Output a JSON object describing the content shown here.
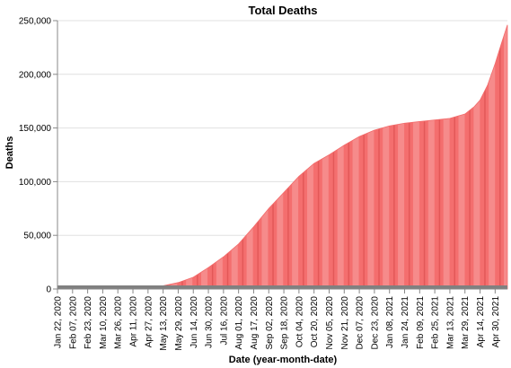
{
  "chart_data": {
    "type": "area",
    "title": "Total Deaths",
    "xlabel": "Date (year-month-date)",
    "ylabel": "Deaths",
    "ylim": [
      0,
      250000
    ],
    "y_ticks": [
      0,
      50000,
      100000,
      150000,
      200000,
      250000
    ],
    "y_tick_labels": [
      "0",
      "50,000",
      "100,000",
      "150,000",
      "200,000",
      "250,000"
    ],
    "x_range": [
      "2020-01-22",
      "2021-05-13"
    ],
    "x_tick_labels": [
      "Jan 22, 2020",
      "Feb 07, 2020",
      "Feb 23, 2020",
      "Mar 10, 2020",
      "Mar 26, 2020",
      "Apr 11, 2020",
      "Apr 27, 2020",
      "May 13, 2020",
      "May 29, 2020",
      "Jun 14, 2020",
      "Jun 30, 2020",
      "Jul 16, 2020",
      "Aug 01, 2020",
      "Aug 17, 2020",
      "Sep 02, 2020",
      "Sep 18, 2020",
      "Oct 04, 2020",
      "Oct 20, 2020",
      "Nov 05, 2020",
      "Nov 21, 2020",
      "Dec 07, 2020",
      "Dec 23, 2020",
      "Jan 08, 2021",
      "Jan 24, 2021",
      "Feb 09, 2021",
      "Feb 25, 2021",
      "Mar 13, 2021",
      "Mar 29, 2021",
      "Apr 14, 2021",
      "Apr 30, 2021"
    ],
    "grid": true,
    "color": "#f26b6b",
    "series": [
      {
        "x": [
          "2020-01-22",
          "2020-02-23",
          "2020-03-26",
          "2020-04-27",
          "2020-05-13",
          "2020-05-29",
          "2020-06-14",
          "2020-06-30",
          "2020-07-16",
          "2020-08-01",
          "2020-08-17",
          "2020-09-02",
          "2020-09-18",
          "2020-10-04",
          "2020-10-20",
          "2020-11-05",
          "2020-11-21",
          "2020-12-07",
          "2020-12-23",
          "2021-01-08",
          "2021-01-24",
          "2021-02-09",
          "2021-02-25",
          "2021-03-13",
          "2021-03-29",
          "2021-04-08",
          "2021-04-14",
          "2021-04-22",
          "2021-04-30",
          "2021-05-06",
          "2021-05-13"
        ],
        "y": [
          0,
          0,
          200,
          1500,
          3000,
          6000,
          11000,
          20000,
          30000,
          42000,
          58000,
          75000,
          90000,
          105000,
          117000,
          125000,
          134000,
          142000,
          148000,
          152000,
          154500,
          156000,
          157500,
          159000,
          163000,
          170000,
          176000,
          190000,
          210000,
          227000,
          246000
        ]
      }
    ]
  }
}
